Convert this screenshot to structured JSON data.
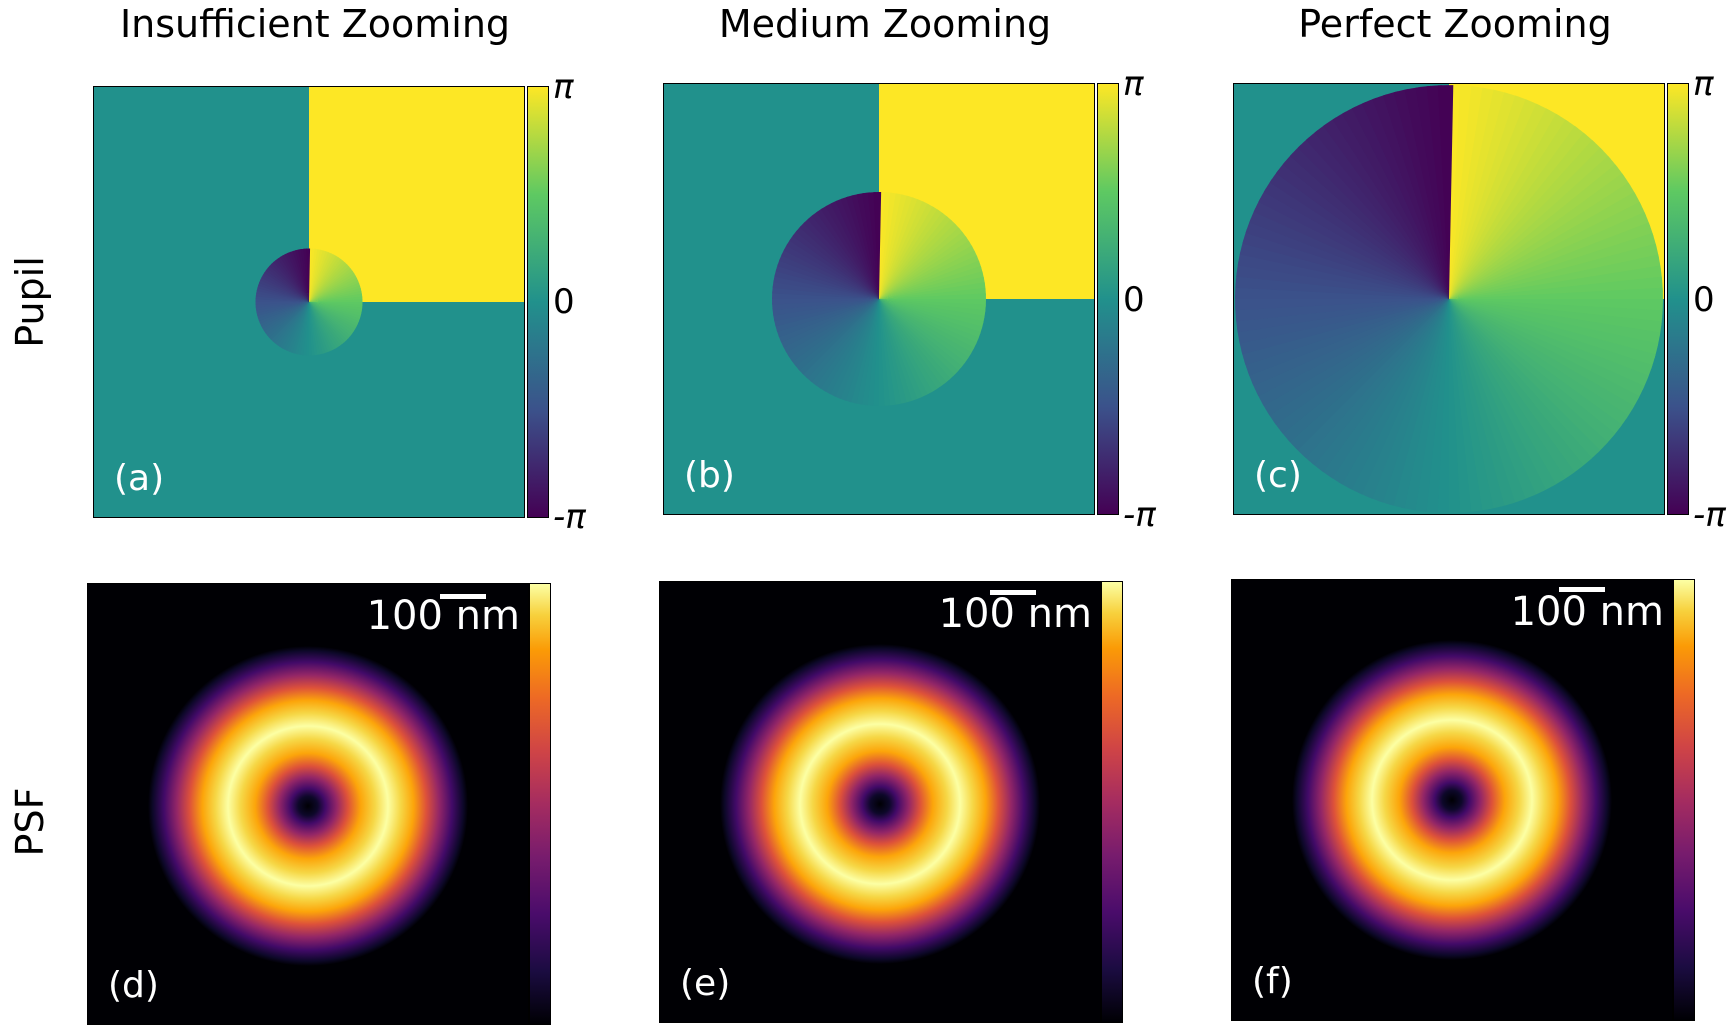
{
  "columns": [
    "Insufficient Zooming",
    "Medium Zooming",
    "Perfect Zooming"
  ],
  "rows": [
    "Pupil",
    "PSF"
  ],
  "panel_labels": [
    "(a)",
    "(b)",
    "(c)",
    "(d)",
    "(e)",
    "(f)"
  ],
  "pupil_colorbar": {
    "top": "π",
    "mid": "0",
    "bottom": "-π",
    "colormap": "viridis"
  },
  "psf_colorbar": {
    "colormap": "inferno"
  },
  "scale_bar": "100 nm",
  "colors": {
    "background": "#21918c",
    "upper_right": "#fde725",
    "psf_background": "#000004",
    "label_text": "#ffffff"
  },
  "pupil_aperture_fraction": [
    0.25,
    0.5,
    1.0
  ]
}
